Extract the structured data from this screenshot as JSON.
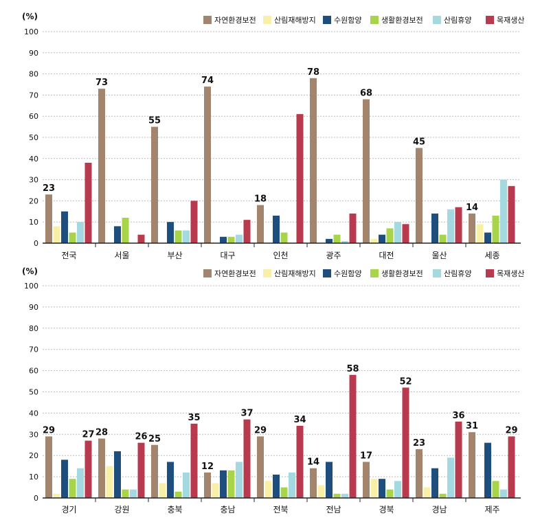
{
  "colors": {
    "series": [
      "#a3846c",
      "#f7f0a6",
      "#1d4e7d",
      "#a8d44a",
      "#a5d9e2",
      "#b83a4e"
    ],
    "grid": "#bbbbbb",
    "axis": "#222222"
  },
  "chart_data": [
    {
      "type": "bar",
      "unit_label": "(%)",
      "ylim": [
        0,
        100
      ],
      "yticks": [
        0,
        10,
        20,
        30,
        40,
        50,
        60,
        70,
        80,
        90,
        100
      ],
      "grid": true,
      "legend_position": "top-right",
      "categories": [
        "전국",
        "서울",
        "부산",
        "대구",
        "인천",
        "광주",
        "대전",
        "울산",
        "세종"
      ],
      "series": [
        {
          "name": "자연환경보전",
          "values": [
            23,
            73,
            55,
            74,
            18,
            78,
            68,
            45,
            14
          ]
        },
        {
          "name": "산림재해방지",
          "values": [
            8,
            0,
            0,
            0,
            0,
            0,
            2,
            0,
            9
          ]
        },
        {
          "name": "수원함양",
          "values": [
            15,
            8,
            10,
            3,
            13,
            2,
            4,
            14,
            5
          ]
        },
        {
          "name": "생활환경보전",
          "values": [
            5,
            12,
            6,
            3,
            5,
            4,
            7,
            4,
            13
          ]
        },
        {
          "name": "산림휴양",
          "values": [
            10,
            0,
            6,
            4,
            0,
            1,
            10,
            16,
            30
          ]
        },
        {
          "name": "목재생산",
          "values": [
            38,
            4,
            20,
            11,
            61,
            14,
            9,
            17,
            27
          ]
        }
      ],
      "data_labels": [
        {
          "category_index": 0,
          "series_index": 0,
          "text": "23"
        },
        {
          "category_index": 1,
          "series_index": 0,
          "text": "73"
        },
        {
          "category_index": 2,
          "series_index": 0,
          "text": "55"
        },
        {
          "category_index": 3,
          "series_index": 0,
          "text": "74"
        },
        {
          "category_index": 4,
          "series_index": 0,
          "text": "18"
        },
        {
          "category_index": 5,
          "series_index": 0,
          "text": "78"
        },
        {
          "category_index": 6,
          "series_index": 0,
          "text": "68"
        },
        {
          "category_index": 7,
          "series_index": 0,
          "text": "45"
        },
        {
          "category_index": 8,
          "series_index": 0,
          "text": "14"
        }
      ]
    },
    {
      "type": "bar",
      "unit_label": "(%)",
      "ylim": [
        0,
        100
      ],
      "yticks": [
        0,
        10,
        20,
        30,
        40,
        50,
        60,
        70,
        80,
        90,
        100
      ],
      "grid": true,
      "legend_position": "top-right",
      "categories": [
        "경기",
        "강원",
        "충북",
        "충남",
        "전북",
        "전남",
        "경북",
        "경남",
        "제주"
      ],
      "series": [
        {
          "name": "자연환경보전",
          "values": [
            29,
            28,
            25,
            12,
            29,
            14,
            17,
            23,
            31
          ]
        },
        {
          "name": "산림재해방지",
          "values": [
            2,
            15,
            7,
            7,
            8,
            6,
            9,
            5,
            0
          ]
        },
        {
          "name": "수원함양",
          "values": [
            18,
            22,
            17,
            13,
            11,
            17,
            9,
            14,
            26
          ]
        },
        {
          "name": "생활환경보전",
          "values": [
            9,
            4,
            3,
            13,
            5,
            2,
            4,
            2,
            8
          ]
        },
        {
          "name": "산림휴양",
          "values": [
            14,
            4,
            12,
            17,
            12,
            2,
            8,
            19,
            4
          ]
        },
        {
          "name": "목재생산",
          "values": [
            27,
            26,
            35,
            37,
            34,
            58,
            52,
            36,
            29
          ]
        }
      ],
      "data_labels": [
        {
          "category_index": 0,
          "series_index": 0,
          "text": "29"
        },
        {
          "category_index": 0,
          "series_index": 5,
          "text": "27"
        },
        {
          "category_index": 1,
          "series_index": 0,
          "text": "28"
        },
        {
          "category_index": 1,
          "series_index": 5,
          "text": "26"
        },
        {
          "category_index": 2,
          "series_index": 0,
          "text": "25"
        },
        {
          "category_index": 2,
          "series_index": 5,
          "text": "35"
        },
        {
          "category_index": 3,
          "series_index": 0,
          "text": "12"
        },
        {
          "category_index": 3,
          "series_index": 5,
          "text": "37"
        },
        {
          "category_index": 4,
          "series_index": 0,
          "text": "29"
        },
        {
          "category_index": 4,
          "series_index": 5,
          "text": "34"
        },
        {
          "category_index": 5,
          "series_index": 0,
          "text": "14"
        },
        {
          "category_index": 5,
          "series_index": 5,
          "text": "58"
        },
        {
          "category_index": 6,
          "series_index": 0,
          "text": "17"
        },
        {
          "category_index": 6,
          "series_index": 5,
          "text": "52"
        },
        {
          "category_index": 7,
          "series_index": 0,
          "text": "23"
        },
        {
          "category_index": 7,
          "series_index": 5,
          "text": "36"
        },
        {
          "category_index": 8,
          "series_index": 0,
          "text": "31"
        },
        {
          "category_index": 8,
          "series_index": 5,
          "text": "29"
        }
      ]
    }
  ]
}
